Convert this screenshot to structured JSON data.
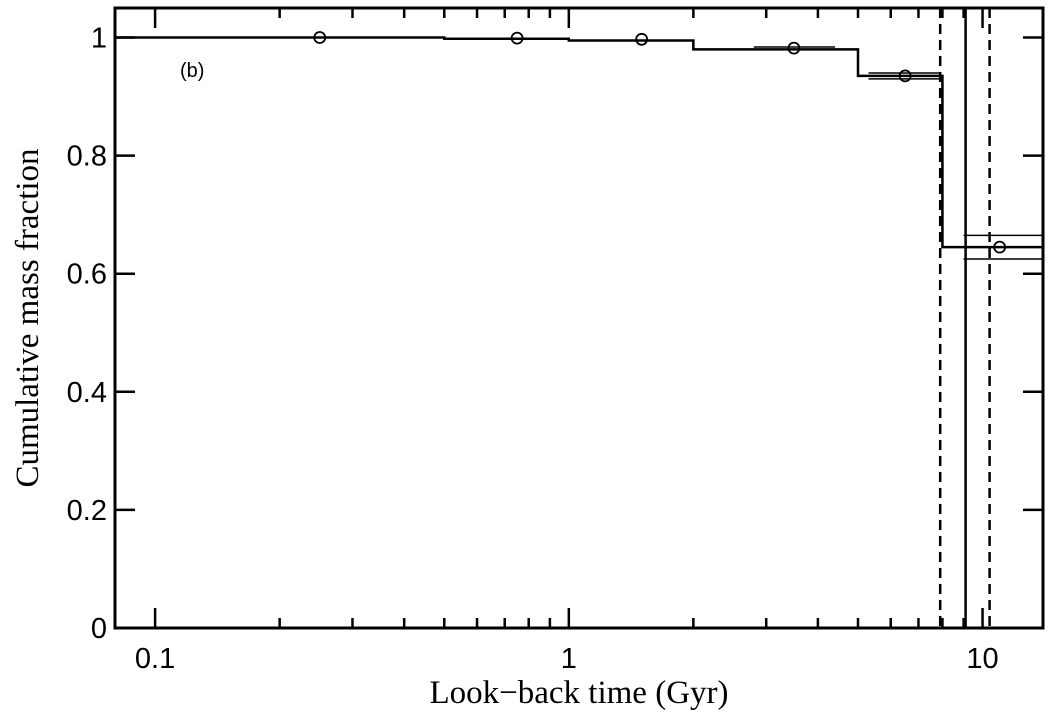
{
  "chart_data": {
    "type": "step",
    "xlabel": "Look−back time (Gyr)",
    "ylabel": "Cumulative mass fraction",
    "annotation": "(b)",
    "xscale": "log",
    "xlim": [
      0.08,
      14
    ],
    "ylim": [
      0,
      1.05
    ],
    "xticks": [
      0.1,
      1,
      10
    ],
    "xminorticks": [
      0.2,
      0.3,
      0.4,
      0.5,
      0.6,
      0.7,
      0.8,
      0.9,
      2,
      3,
      4,
      5,
      6,
      7,
      8,
      9
    ],
    "yticks": [
      0,
      0.2,
      0.4,
      0.6,
      0.8,
      1
    ],
    "color": "#000000",
    "step": {
      "edges": [
        0.08,
        0.5,
        1,
        2,
        5,
        8,
        14
      ],
      "values": [
        1,
        0.998,
        0.995,
        0.98,
        0.935,
        0.645
      ]
    },
    "points": {
      "x": [
        0.25,
        0.75,
        1.5,
        3.5,
        6.5,
        11
      ],
      "values": [
        1,
        0.999,
        0.997,
        0.982,
        0.935,
        0.645
      ],
      "errors": [
        0,
        0,
        0,
        0.002,
        0.005,
        0.02
      ],
      "xlo": [
        0.25,
        0.75,
        1.5,
        2.8,
        5.3,
        9.0
      ],
      "xhi": [
        0.25,
        0.75,
        1.5,
        4.4,
        7.9,
        14
      ]
    },
    "vlines": [
      {
        "x": 9.1,
        "style": "solid"
      },
      {
        "x": 7.9,
        "style": "dashed"
      },
      {
        "x": 10.4,
        "style": "dashed"
      }
    ]
  }
}
